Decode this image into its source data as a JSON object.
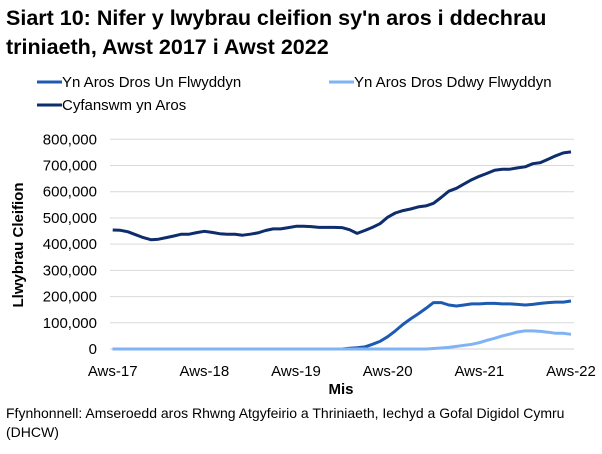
{
  "chart_data": {
    "type": "line",
    "title": "Siart 10: Nifer y lwybrau cleifion sy'n aros i ddechrau triniaeth, Awst 2017 i Awst 2022",
    "xlabel": "Mis",
    "ylabel": "Llwybrau Cleifion",
    "ylim": [
      0,
      800000
    ],
    "yticks": [
      "0",
      "100,000",
      "200,000",
      "300,000",
      "400,000",
      "500,000",
      "600,000",
      "700,000",
      "800,000"
    ],
    "xtick_labels": [
      "Aws-17",
      "Aws-18",
      "Aws-19",
      "Aws-20",
      "Aws-21",
      "Aws-22"
    ],
    "x_range": [
      "Aug 2017",
      "Aug 2022"
    ],
    "x_frequency": "monthly",
    "grid": true,
    "legend_position": "top",
    "series": [
      {
        "name": "Yn Aros Dros Un Flwyddyn",
        "color": "#1d5bb3",
        "values": [
          0,
          0,
          0,
          0,
          0,
          0,
          0,
          0,
          0,
          0,
          0,
          0,
          0,
          0,
          0,
          0,
          0,
          0,
          0,
          0,
          0,
          0,
          0,
          0,
          0,
          0,
          0,
          0,
          0,
          0,
          0,
          3000,
          5000,
          8000,
          18000,
          29000,
          47000,
          69000,
          94000,
          115000,
          134000,
          155000,
          177000,
          177000,
          168000,
          164000,
          168000,
          172000,
          172000,
          174000,
          174000,
          172000,
          172000,
          170000,
          168000,
          170000,
          174000,
          177000,
          179000,
          179000,
          183000
        ]
      },
      {
        "name": "Yn Aros Dros Ddwy Flwyddyn",
        "color": "#7fb3f5",
        "values": [
          0,
          0,
          0,
          0,
          0,
          0,
          0,
          0,
          0,
          0,
          0,
          0,
          0,
          0,
          0,
          0,
          0,
          0,
          0,
          0,
          0,
          0,
          0,
          0,
          0,
          0,
          0,
          0,
          0,
          0,
          0,
          0,
          0,
          0,
          0,
          0,
          0,
          0,
          0,
          0,
          0,
          0,
          2000,
          4000,
          6000,
          10000,
          14000,
          18000,
          24000,
          33000,
          41000,
          50000,
          57000,
          65000,
          69000,
          69000,
          67000,
          64000,
          60000,
          60000,
          56000
        ]
      },
      {
        "name": "Cyfanswm yn Aros",
        "color": "#0e2d6d",
        "values": [
          454000,
          453000,
          447000,
          436000,
          425000,
          417000,
          419000,
          425000,
          431000,
          438000,
          438000,
          444000,
          449000,
          445000,
          440000,
          438000,
          438000,
          434000,
          438000,
          443000,
          452000,
          458000,
          458000,
          463000,
          468000,
          468000,
          467000,
          464000,
          464000,
          464000,
          463000,
          455000,
          441000,
          452000,
          464000,
          478000,
          503000,
          519000,
          528000,
          534000,
          542000,
          546000,
          556000,
          578000,
          602000,
          613000,
          630000,
          646000,
          659000,
          670000,
          682000,
          686000,
          686000,
          691000,
          695000,
          707000,
          711000,
          724000,
          737000,
          748000,
          752000
        ]
      }
    ]
  },
  "footer": "Ffynhonnell: Amseroedd aros Rhwng Atgyfeirio a Thriniaeth, Iechyd a Gofal Digidol Cymru (DHCW)"
}
